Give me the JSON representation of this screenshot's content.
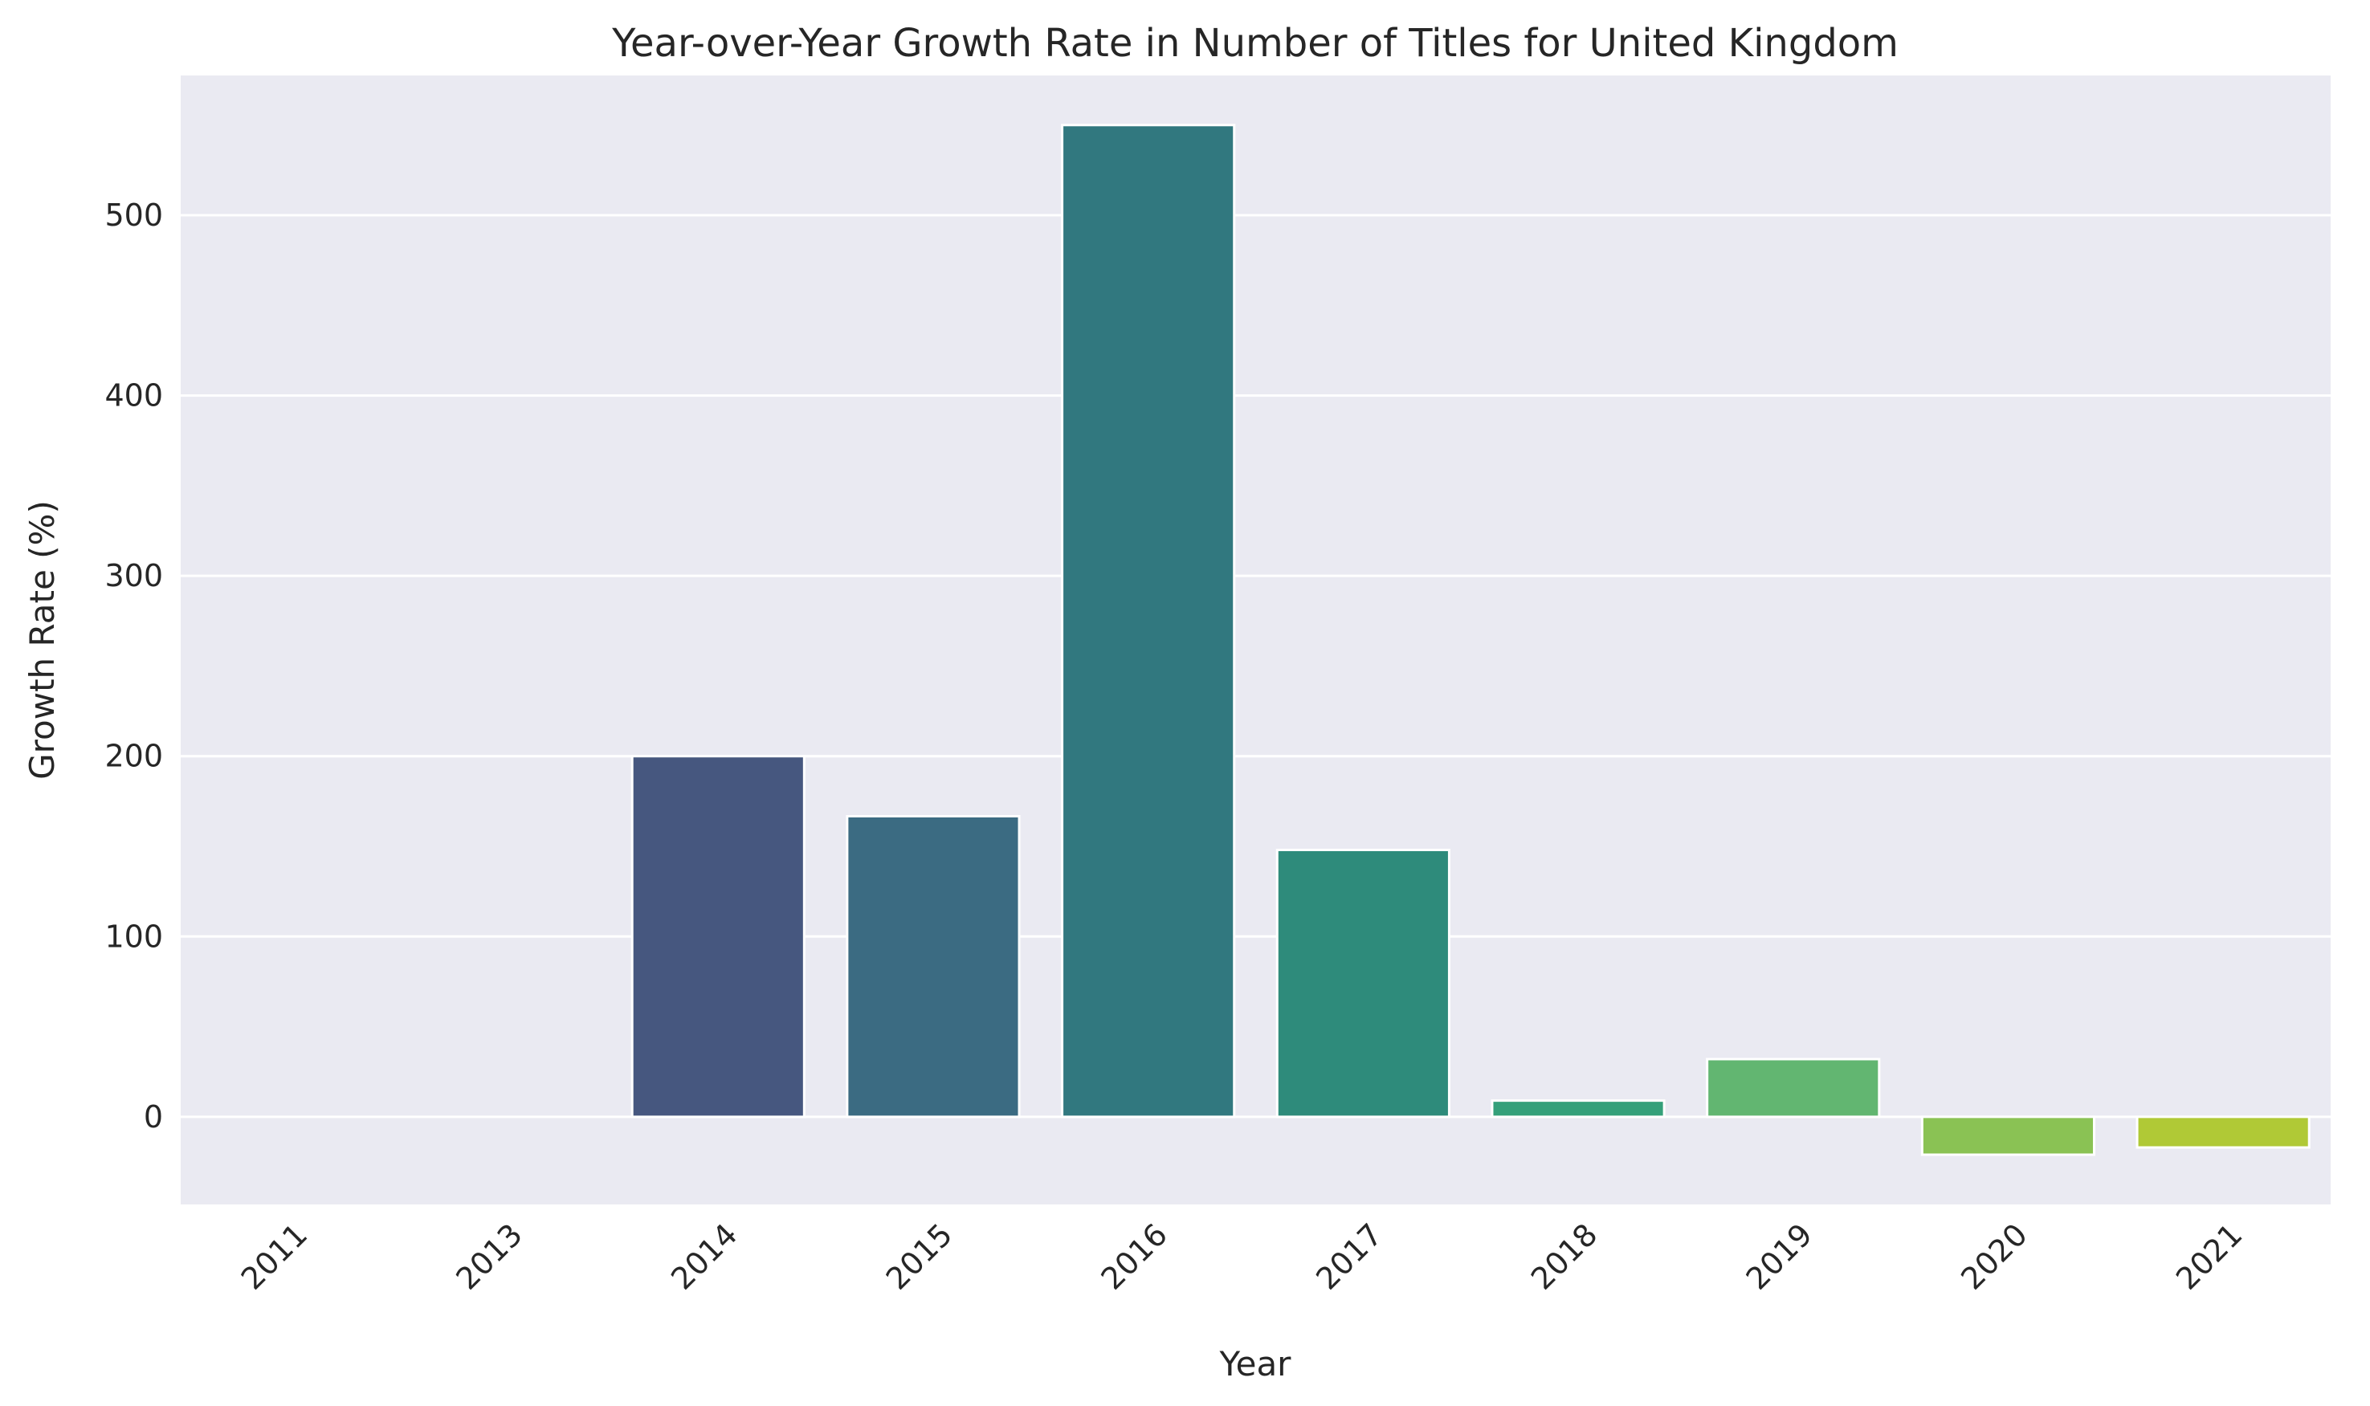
{
  "chart_data": {
    "type": "bar",
    "title": "Year-over-Year Growth Rate in Number of Titles for United Kingdom",
    "xlabel": "Year",
    "ylabel": "Growth Rate (%)",
    "categories": [
      "2011",
      "2013",
      "2014",
      "2015",
      "2016",
      "2017",
      "2018",
      "2019",
      "2020",
      "2021"
    ],
    "values": [
      0,
      0,
      200,
      166.7,
      550,
      148,
      9,
      32,
      -21,
      -17
    ],
    "colors": [
      "#482475",
      "#414487",
      "#46577f",
      "#3b6b82",
      "#31787f",
      "#2e8b7b",
      "#35a07a",
      "#62b671",
      "#8ac254",
      "#b0c936"
    ],
    "yticks": [
      0,
      100,
      200,
      300,
      400,
      500
    ],
    "ylim": [
      -48.6,
      577.5
    ],
    "grid": true,
    "background": "#eaeaf2",
    "gridcolor": "#ffffff"
  }
}
